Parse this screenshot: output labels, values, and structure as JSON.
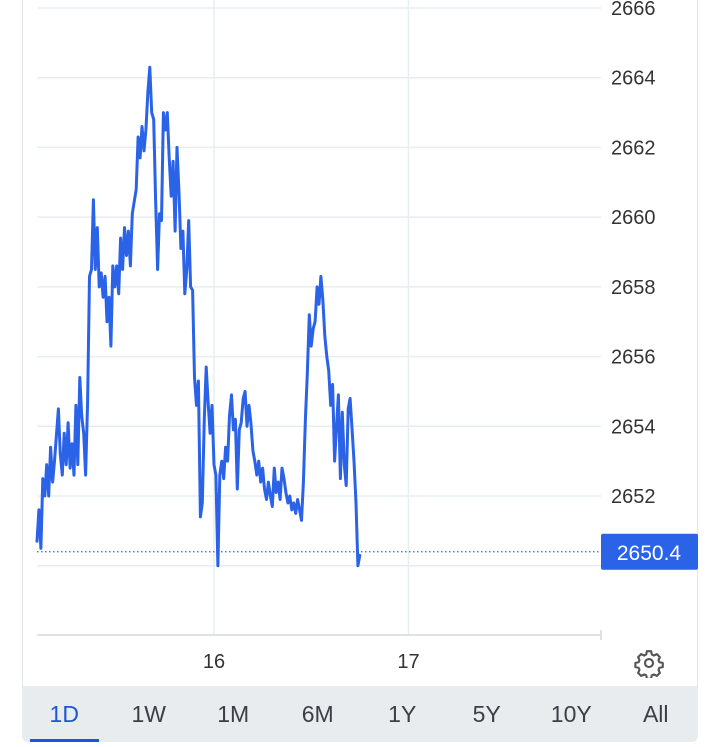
{
  "chart_data": {
    "type": "line",
    "y_ticks": [
      "2666",
      "2664",
      "2662",
      "2660",
      "2658",
      "2656",
      "2654",
      "2652"
    ],
    "ylim": [
      2649,
      2666
    ],
    "x_ticks": [
      {
        "label": "16",
        "x": 16.0
      },
      {
        "label": "17",
        "x": 17.0
      }
    ],
    "xlim": [
      15.09,
      17.99
    ],
    "grid": true,
    "current_value": 2650.4,
    "current_label": "2650.4",
    "colors": {
      "line": "#2a62e8",
      "badge": "#2a62e8",
      "grid": "#e6eef2"
    },
    "series": [
      {
        "values": [
          [
            15.09,
            2650.7
          ],
          [
            15.1,
            2651.6
          ],
          [
            15.11,
            2650.5
          ],
          [
            15.12,
            2652.5
          ],
          [
            15.13,
            2652.0
          ],
          [
            15.14,
            2652.9
          ],
          [
            15.15,
            2652.0
          ],
          [
            15.16,
            2653.4
          ],
          [
            15.17,
            2652.4
          ],
          [
            15.18,
            2653.0
          ],
          [
            15.2,
            2654.5
          ],
          [
            15.21,
            2653.2
          ],
          [
            15.22,
            2652.6
          ],
          [
            15.23,
            2653.8
          ],
          [
            15.24,
            2652.9
          ],
          [
            15.25,
            2654.1
          ],
          [
            15.26,
            2652.8
          ],
          [
            15.27,
            2653.5
          ],
          [
            15.28,
            2652.6
          ],
          [
            15.29,
            2654.6
          ],
          [
            15.3,
            2652.9
          ],
          [
            15.31,
            2655.4
          ],
          [
            15.32,
            2654.3
          ],
          [
            15.33,
            2653.8
          ],
          [
            15.34,
            2652.6
          ],
          [
            15.35,
            2654.7
          ],
          [
            15.36,
            2658.3
          ],
          [
            15.37,
            2658.5
          ],
          [
            15.38,
            2660.5
          ],
          [
            15.39,
            2658.5
          ],
          [
            15.4,
            2659.7
          ],
          [
            15.41,
            2658.0
          ],
          [
            15.42,
            2658.4
          ],
          [
            15.43,
            2657.7
          ],
          [
            15.44,
            2658.3
          ],
          [
            15.45,
            2657.0
          ],
          [
            15.46,
            2657.7
          ],
          [
            15.47,
            2656.3
          ],
          [
            15.48,
            2658.6
          ],
          [
            15.49,
            2658.0
          ],
          [
            15.5,
            2658.6
          ],
          [
            15.51,
            2657.8
          ],
          [
            15.52,
            2659.4
          ],
          [
            15.53,
            2658.5
          ],
          [
            15.54,
            2659.7
          ],
          [
            15.55,
            2658.9
          ],
          [
            15.56,
            2659.6
          ],
          [
            15.57,
            2658.6
          ],
          [
            15.58,
            2660.1
          ],
          [
            15.6,
            2660.8
          ],
          [
            15.61,
            2662.3
          ],
          [
            15.62,
            2661.7
          ],
          [
            15.63,
            2662.6
          ],
          [
            15.64,
            2661.9
          ],
          [
            15.65,
            2662.5
          ],
          [
            15.66,
            2663.6
          ],
          [
            15.67,
            2664.3
          ],
          [
            15.68,
            2663.0
          ],
          [
            15.69,
            2662.8
          ],
          [
            15.7,
            2660.5
          ],
          [
            15.71,
            2658.5
          ],
          [
            15.72,
            2660.1
          ],
          [
            15.73,
            2659.9
          ],
          [
            15.74,
            2663.0
          ],
          [
            15.75,
            2662.5
          ],
          [
            15.76,
            2663.0
          ],
          [
            15.77,
            2661.7
          ],
          [
            15.78,
            2660.6
          ],
          [
            15.79,
            2661.6
          ],
          [
            15.8,
            2659.6
          ],
          [
            15.81,
            2662.0
          ],
          [
            15.82,
            2660.7
          ],
          [
            15.83,
            2659.1
          ],
          [
            15.84,
            2659.6
          ],
          [
            15.85,
            2657.8
          ],
          [
            15.86,
            2658.5
          ],
          [
            15.87,
            2659.9
          ],
          [
            15.88,
            2658.0
          ],
          [
            15.89,
            2657.9
          ],
          [
            15.9,
            2655.4
          ],
          [
            15.91,
            2654.6
          ],
          [
            15.92,
            2655.3
          ],
          [
            15.93,
            2651.4
          ],
          [
            15.94,
            2651.8
          ],
          [
            15.95,
            2654.2
          ],
          [
            15.96,
            2655.7
          ],
          [
            15.97,
            2654.7
          ],
          [
            15.98,
            2653.8
          ],
          [
            15.99,
            2654.6
          ],
          [
            16.0,
            2652.9
          ],
          [
            16.01,
            2652.6
          ],
          [
            16.02,
            2650.0
          ],
          [
            16.03,
            2652.6
          ],
          [
            16.04,
            2653.0
          ],
          [
            16.05,
            2652.5
          ],
          [
            16.06,
            2653.4
          ],
          [
            16.07,
            2653.0
          ],
          [
            16.08,
            2654.3
          ],
          [
            16.09,
            2654.9
          ],
          [
            16.1,
            2653.9
          ],
          [
            16.11,
            2654.2
          ],
          [
            16.12,
            2652.2
          ],
          [
            16.13,
            2653.9
          ],
          [
            16.14,
            2654.1
          ],
          [
            16.15,
            2654.8
          ],
          [
            16.16,
            2655.0
          ],
          [
            16.17,
            2654.0
          ],
          [
            16.18,
            2654.6
          ],
          [
            16.19,
            2654.1
          ],
          [
            16.2,
            2653.3
          ],
          [
            16.21,
            2653.0
          ],
          [
            16.22,
            2652.6
          ],
          [
            16.23,
            2653.0
          ],
          [
            16.24,
            2652.4
          ],
          [
            16.25,
            2652.8
          ],
          [
            16.26,
            2652.2
          ],
          [
            16.27,
            2651.9
          ],
          [
            16.28,
            2652.4
          ],
          [
            16.29,
            2652.0
          ],
          [
            16.3,
            2651.7
          ],
          [
            16.31,
            2652.8
          ],
          [
            16.32,
            2652.1
          ],
          [
            16.33,
            2652.4
          ],
          [
            16.34,
            2651.9
          ],
          [
            16.35,
            2652.8
          ],
          [
            16.36,
            2652.5
          ],
          [
            16.37,
            2652.1
          ],
          [
            16.38,
            2651.8
          ],
          [
            16.39,
            2652.0
          ],
          [
            16.4,
            2651.6
          ],
          [
            16.41,
            2651.8
          ],
          [
            16.42,
            2651.5
          ],
          [
            16.43,
            2651.9
          ],
          [
            16.44,
            2651.6
          ],
          [
            16.45,
            2651.3
          ],
          [
            16.46,
            2652.4
          ],
          [
            16.47,
            2654.2
          ],
          [
            16.48,
            2655.5
          ],
          [
            16.49,
            2657.2
          ],
          [
            16.5,
            2656.3
          ],
          [
            16.51,
            2656.8
          ],
          [
            16.52,
            2657.0
          ],
          [
            16.53,
            2658.0
          ],
          [
            16.54,
            2657.5
          ],
          [
            16.55,
            2658.3
          ],
          [
            16.56,
            2657.6
          ],
          [
            16.57,
            2656.6
          ],
          [
            16.58,
            2656.0
          ],
          [
            16.59,
            2655.6
          ],
          [
            16.6,
            2654.6
          ],
          [
            16.61,
            2655.2
          ],
          [
            16.62,
            2653.0
          ],
          [
            16.63,
            2654.0
          ],
          [
            16.64,
            2654.9
          ],
          [
            16.65,
            2652.5
          ],
          [
            16.66,
            2654.4
          ],
          [
            16.67,
            2652.9
          ],
          [
            16.68,
            2652.3
          ],
          [
            16.69,
            2654.5
          ],
          [
            16.7,
            2654.8
          ],
          [
            16.71,
            2653.9
          ],
          [
            16.72,
            2653.0
          ],
          [
            16.73,
            2651.8
          ],
          [
            16.74,
            2650.0
          ],
          [
            16.75,
            2650.3
          ]
        ]
      }
    ]
  },
  "ranges": {
    "items": [
      "1D",
      "1W",
      "1M",
      "6M",
      "1Y",
      "5Y",
      "10Y",
      "All"
    ],
    "active": "1D"
  },
  "icons": {
    "settings": "gear-icon"
  }
}
